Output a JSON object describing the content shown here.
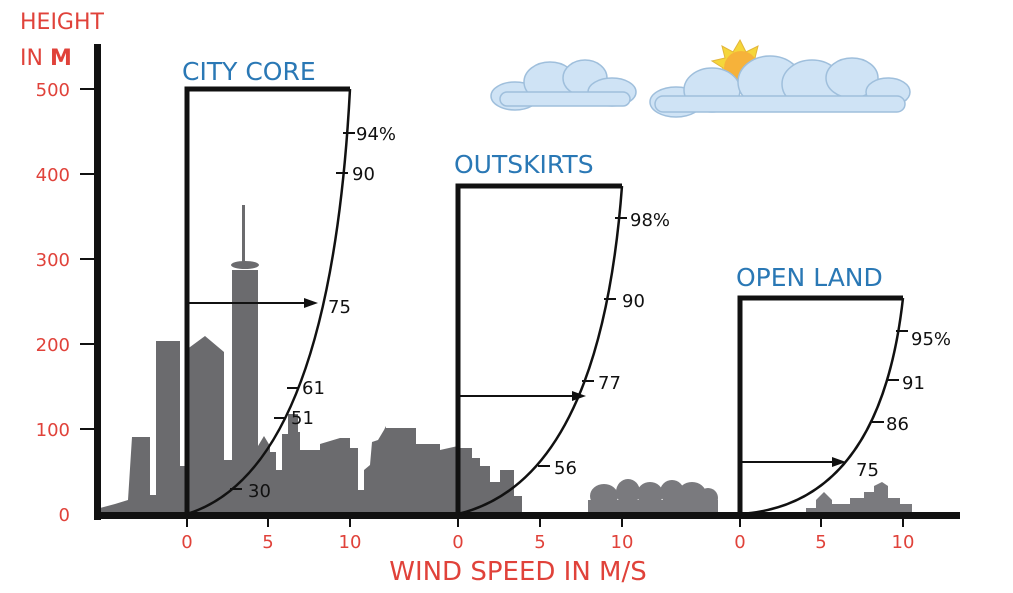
{
  "axis": {
    "y_title_line1": "HEIGHT",
    "y_title_line2_prefix": "IN ",
    "y_title_line2_unit": "M",
    "y_ticks": [
      "0",
      "100",
      "200",
      "300",
      "400",
      "500"
    ],
    "x_title": "WIND SPEED IN M/S"
  },
  "zones": [
    {
      "title": "CITY CORE",
      "x_ticks": [
        "0",
        "5",
        "10"
      ],
      "labels": [
        "94%",
        "90",
        "75",
        "61",
        "51",
        "30"
      ]
    },
    {
      "title": "OUTSKIRTS",
      "x_ticks": [
        "0",
        "5",
        "10"
      ],
      "labels": [
        "98%",
        "90",
        "77",
        "56"
      ]
    },
    {
      "title": "OPEN LAND",
      "x_ticks": [
        "0",
        "5",
        "10"
      ],
      "labels": [
        "95%",
        "91",
        "86",
        "75"
      ]
    }
  ],
  "colors": {
    "axis_text": "#e0423a",
    "zone_title": "#2a78b5",
    "line": "#111111",
    "buildings": "#6b6b6e",
    "clouds": "#cfe3f5",
    "sun": "#f6b23a"
  }
}
